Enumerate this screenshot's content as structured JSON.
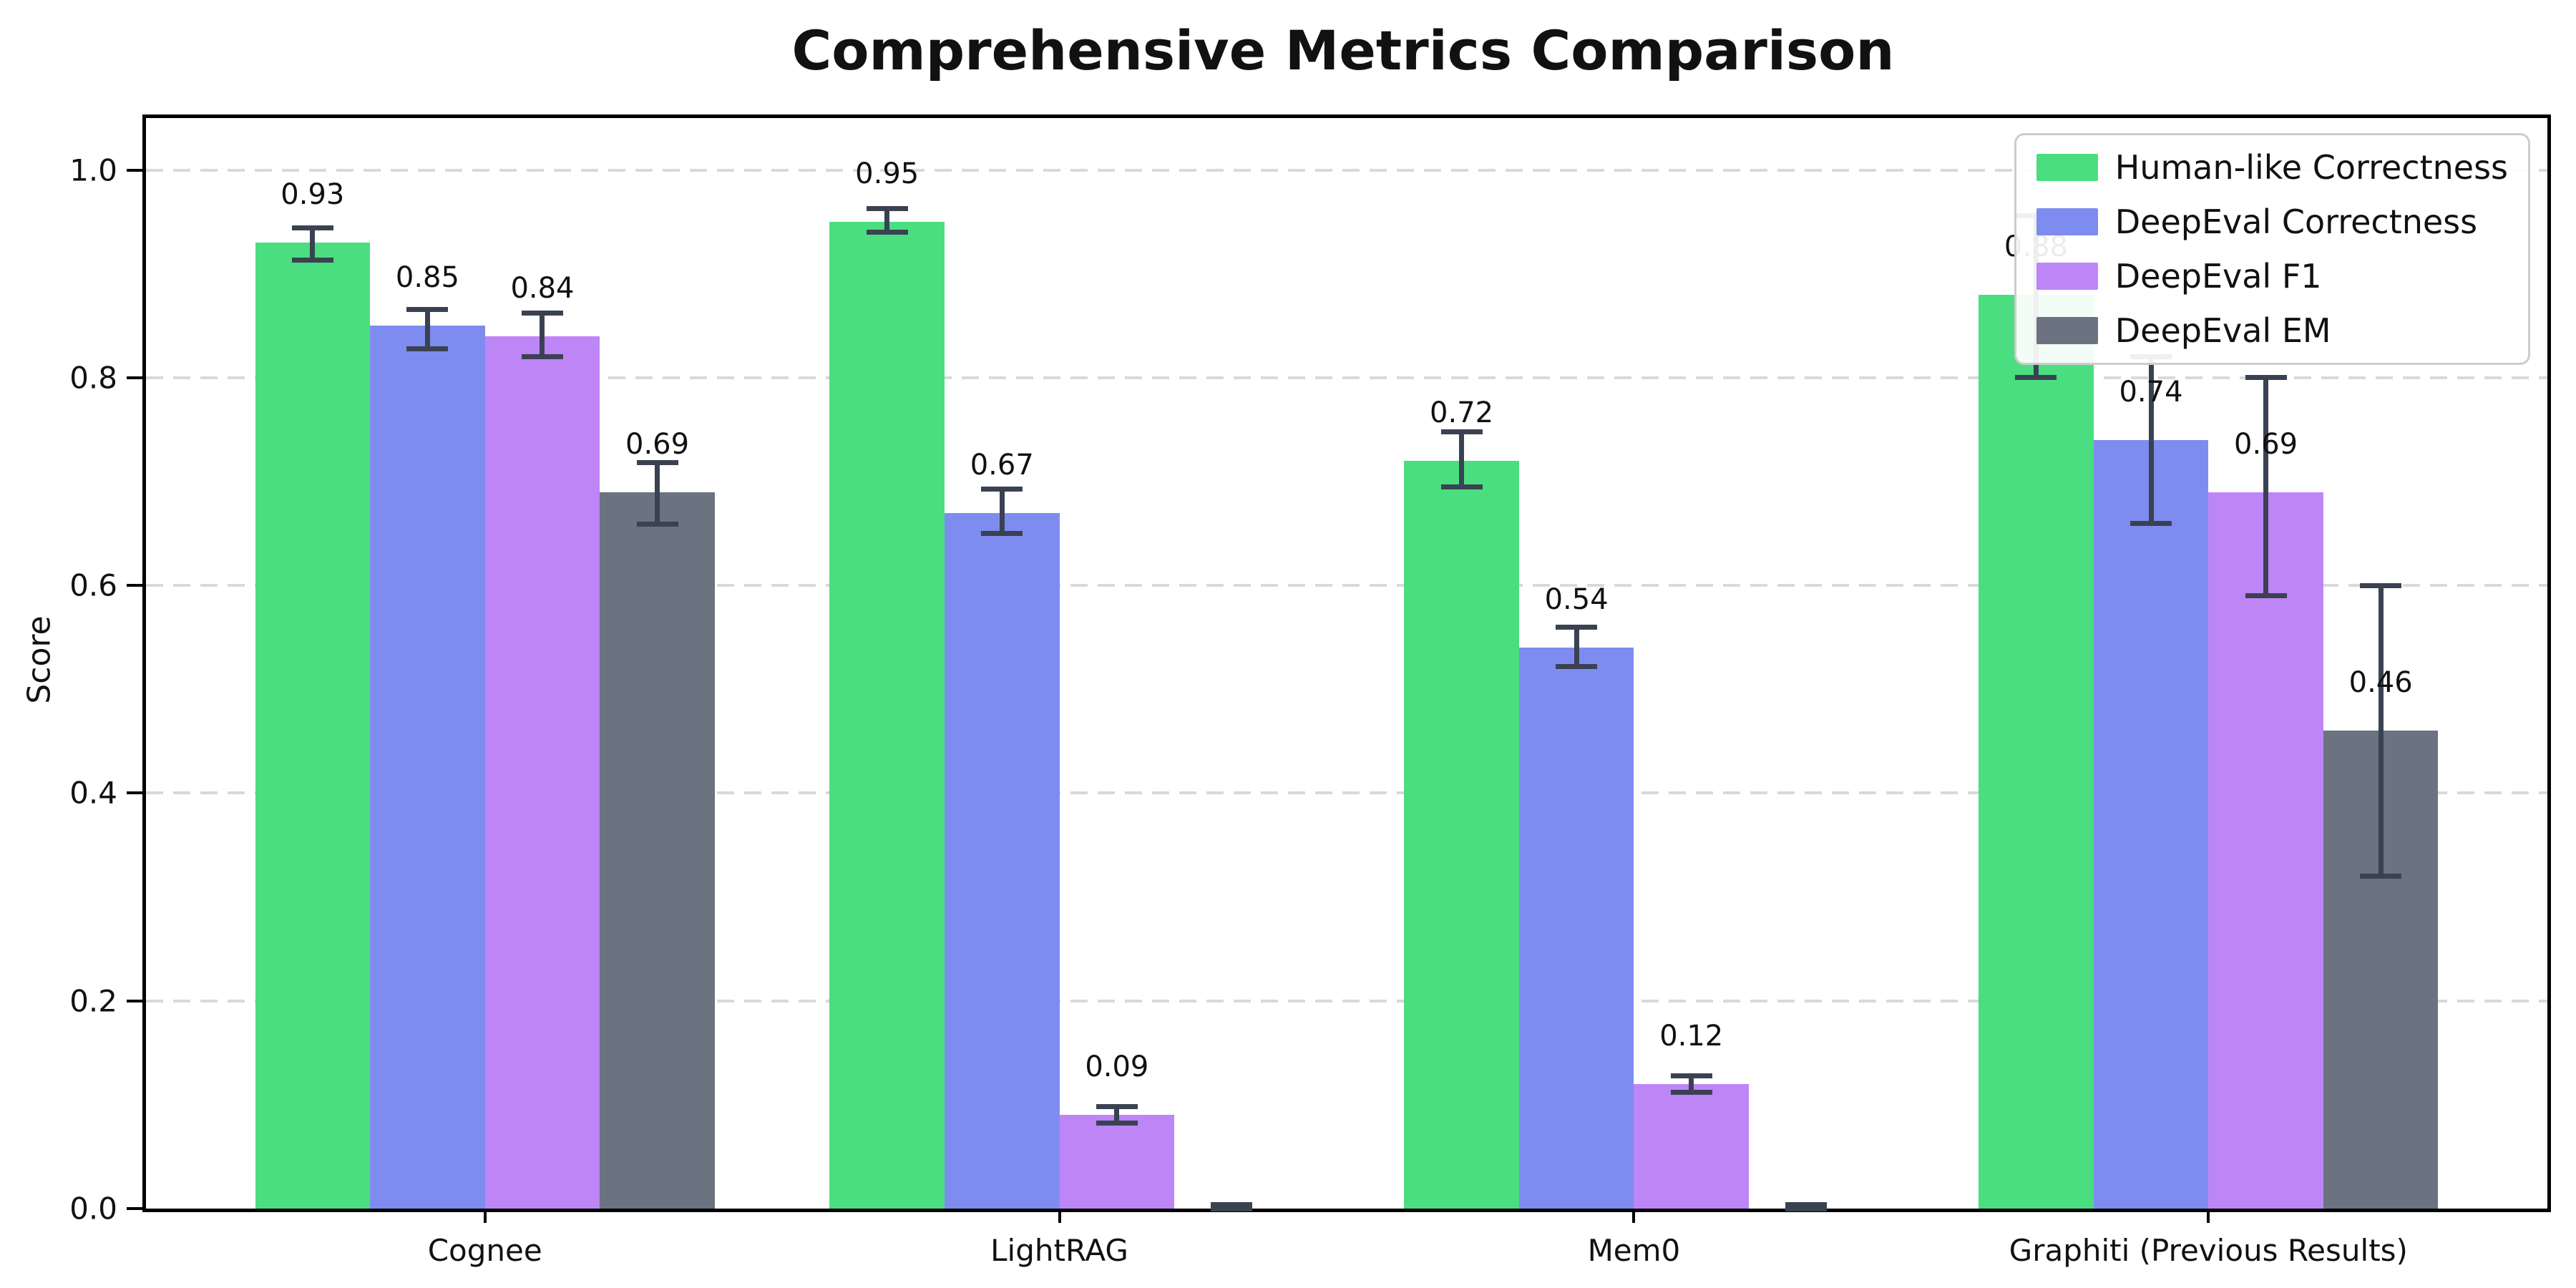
{
  "chart_data": {
    "type": "bar",
    "title": "Comprehensive Metrics Comparison",
    "ylabel": "Score",
    "xlabel": "",
    "categories": [
      "Cognee",
      "LightRAG",
      "Mem0",
      "Graphiti (Previous Results)"
    ],
    "y_ticks": [
      "0.0",
      "0.2",
      "0.4",
      "0.6",
      "0.8",
      "1.0"
    ],
    "ylim": [
      0,
      1.05
    ],
    "grid": "horizontal-dashed",
    "legend_position": "upper right",
    "error_bar_color": "#3a4252",
    "series": [
      {
        "name": "Human-like Correctness",
        "color": "#4ade80",
        "values": [
          0.93,
          0.95,
          0.72,
          0.88
        ],
        "labels": [
          "0.93",
          "0.95",
          "0.72",
          "0.88"
        ],
        "err_low": [
          0.913,
          0.94,
          0.695,
          0.8
        ],
        "err_high": [
          0.944,
          0.963,
          0.748,
          0.956
        ]
      },
      {
        "name": "DeepEval Correctness",
        "color": "#7e8cf0",
        "values": [
          0.85,
          0.67,
          0.54,
          0.74
        ],
        "labels": [
          "0.85",
          "0.67",
          "0.54",
          "0.74"
        ],
        "err_low": [
          0.828,
          0.65,
          0.522,
          0.66
        ],
        "err_high": [
          0.866,
          0.693,
          0.56,
          0.82
        ]
      },
      {
        "name": "DeepEval F1",
        "color": "#be85f7",
        "values": [
          0.84,
          0.09,
          0.12,
          0.69
        ],
        "labels": [
          "0.84",
          "0.09",
          "0.12",
          "0.69"
        ],
        "err_low": [
          0.82,
          0.082,
          0.112,
          0.59
        ],
        "err_high": [
          0.862,
          0.098,
          0.128,
          0.8
        ]
      },
      {
        "name": "DeepEval EM",
        "color": "#6b7280",
        "values": [
          0.69,
          0.0,
          0.0,
          0.46
        ],
        "labels": [
          "0.69",
          "",
          "",
          "0.46"
        ],
        "err_low": [
          0.659,
          0.0,
          0.0,
          0.32
        ],
        "err_high": [
          0.718,
          0.004,
          0.004,
          0.6
        ]
      }
    ]
  }
}
